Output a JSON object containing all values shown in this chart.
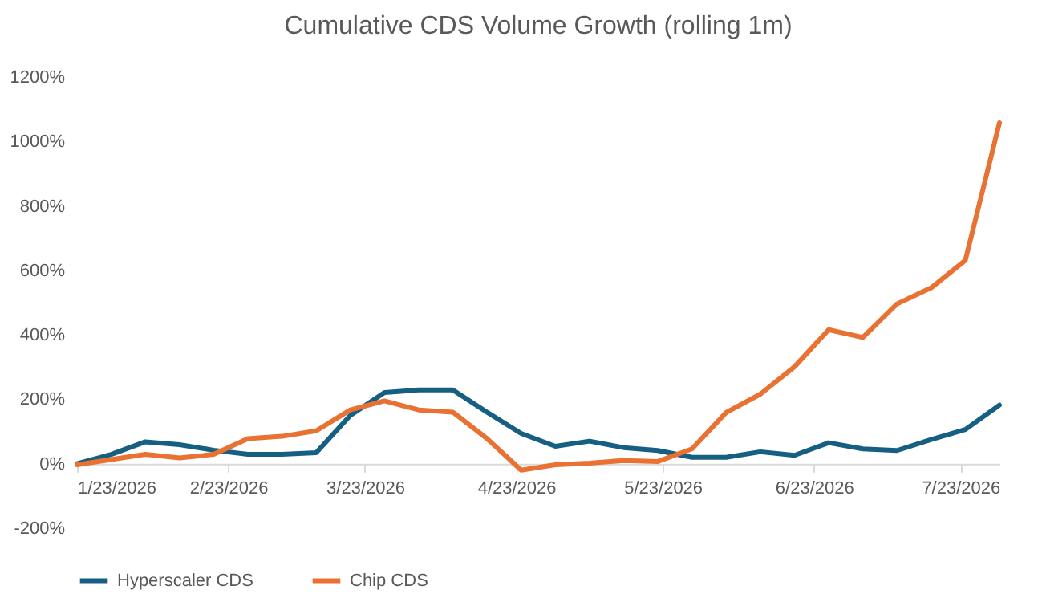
{
  "chart_data": {
    "type": "line",
    "title": "Cumulative  CDS Volume Growth (rolling 1m)",
    "x": [
      "2026-01-23",
      "2026-01-30",
      "2026-02-06",
      "2026-02-13",
      "2026-02-20",
      "2026-02-27",
      "2026-03-06",
      "2026-03-13",
      "2026-03-20",
      "2026-03-27",
      "2026-04-03",
      "2026-04-10",
      "2026-04-17",
      "2026-04-24",
      "2026-05-01",
      "2026-05-08",
      "2026-05-15",
      "2026-05-22",
      "2026-05-29",
      "2026-06-05",
      "2026-06-12",
      "2026-06-19",
      "2026-06-26",
      "2026-07-03",
      "2026-07-10",
      "2026-07-17",
      "2026-07-24",
      "2026-07-31"
    ],
    "series": [
      {
        "name": "Hyperscaler CDS",
        "color": "#156082",
        "values": [
          0,
          29,
          68,
          59,
          42,
          29,
          29,
          34,
          150,
          221,
          229,
          229,
          160,
          94,
          54,
          70,
          50,
          41,
          20,
          20,
          37,
          26,
          65,
          46,
          41,
          75,
          106,
          182
        ]
      },
      {
        "name": "Chip CDS",
        "color": "#e97132",
        "values": [
          -3,
          13,
          29,
          18,
          29,
          78,
          85,
          102,
          167,
          195,
          167,
          160,
          78,
          -20,
          -3,
          2,
          10,
          7,
          46,
          159,
          216,
          301,
          416,
          392,
          496,
          546,
          631,
          1058
        ]
      }
    ],
    "xlim": [
      "2026-01-23",
      "2026-07-31"
    ],
    "xticks": [
      {
        "value": "2026-01-23",
        "label": "1/23/2026"
      },
      {
        "value": "2026-02-23",
        "label": "2/23/2026"
      },
      {
        "value": "2026-03-23",
        "label": "3/23/2026"
      },
      {
        "value": "2026-04-23",
        "label": "4/23/2026"
      },
      {
        "value": "2026-05-23",
        "label": "5/23/2026"
      },
      {
        "value": "2026-06-23",
        "label": "6/23/2026"
      },
      {
        "value": "2026-07-23",
        "label": "7/23/2026"
      }
    ],
    "ylim": [
      -200,
      1200
    ],
    "yticks": [
      {
        "value": -200,
        "label": "-200%"
      },
      {
        "value": 0,
        "label": "0%"
      },
      {
        "value": 200,
        "label": "200%"
      },
      {
        "value": 400,
        "label": "400%"
      },
      {
        "value": 600,
        "label": "600%"
      },
      {
        "value": 800,
        "label": "800%"
      },
      {
        "value": 1000,
        "label": "1000%"
      },
      {
        "value": 1200,
        "label": "1200%"
      }
    ],
    "legend": "bottom"
  }
}
